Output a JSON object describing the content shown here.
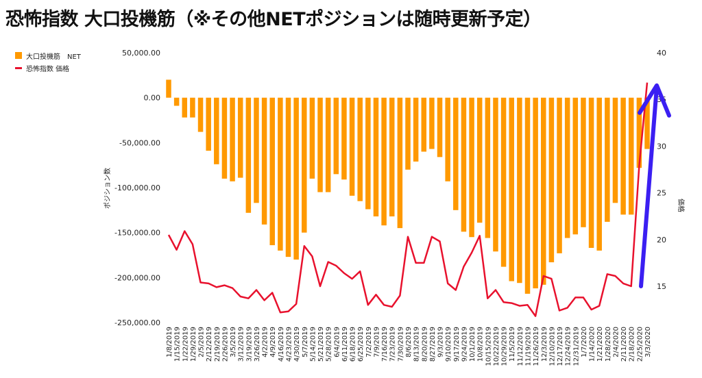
{
  "title": "恐怖指数 大口投機筋（※その他NETポジションは随時更新予定）",
  "legend": {
    "bar_label": "大口投機筋　NET",
    "line_label": "恐怖指数 価格"
  },
  "colors": {
    "bar": "#ff9900",
    "line": "#e8112d",
    "arrow": "#3b1ff2"
  },
  "chart_data": {
    "type": "bar",
    "title": "恐怖指数 大口投機筋（※その他NETポジションは随時更新予定）",
    "xlabel": "",
    "ylabel": "ポジション数",
    "y2label": "価格",
    "ylim": [
      -250000,
      50000
    ],
    "y2lim": [
      10,
      40
    ],
    "yticks": [
      "50,000.00",
      "0.00",
      "-50,000.00",
      "-100,000.00",
      "-150,000.00",
      "-200,000.00",
      "-250,000.00"
    ],
    "yticks_values": [
      50000,
      0,
      -50000,
      -100000,
      -150000,
      -200000,
      -250000
    ],
    "y2ticks": [
      "40",
      "35",
      "30",
      "25",
      "20",
      "15"
    ],
    "y2ticks_values": [
      40,
      35,
      30,
      25,
      20,
      15
    ],
    "legend_position": "top-left",
    "categories": [
      "1/8/2019",
      "1/15/2019",
      "1/22/2019",
      "1/29/2019",
      "2/5/2019",
      "2/12/2019",
      "2/19/2019",
      "2/26/2019",
      "3/5/2019",
      "3/12/2019",
      "3/19/2019",
      "3/26/2019",
      "4/2/2019",
      "4/9/2019",
      "4/16/2019",
      "4/23/2019",
      "4/30/2019",
      "5/7/2019",
      "5/14/2019",
      "5/21/2019",
      "5/28/2019",
      "6/4/2019",
      "6/11/2019",
      "6/18/2019",
      "6/25/2019",
      "7/2/2019",
      "7/9/2019",
      "7/16/2019",
      "7/23/2019",
      "7/30/2019",
      "8/6/2019",
      "8/13/2019",
      "8/20/2019",
      "8/27/2019",
      "9/3/2019",
      "9/10/2019",
      "9/17/2019",
      "9/24/2019",
      "10/1/2019",
      "10/8/2019",
      "10/15/2019",
      "10/22/2019",
      "10/29/2019",
      "11/5/2019",
      "11/12/2019",
      "11/19/2019",
      "11/26/2019",
      "12/3/2019",
      "12/10/2019",
      "12/17/2019",
      "12/24/2019",
      "12/31/2019",
      "1/7/2020",
      "1/14/2020",
      "1/21/2020",
      "1/28/2020",
      "2/4/2020",
      "2/11/2020",
      "2/18/2020",
      "2/25/2020",
      "3/3/2020"
    ],
    "series": [
      {
        "name": "大口投機筋　NET",
        "type": "bar",
        "axis": "left",
        "values": [
          20000,
          -9000,
          -22000,
          -22000,
          -38000,
          -59000,
          -74000,
          -90000,
          -93000,
          -89000,
          -128000,
          -117000,
          -141000,
          -164000,
          -170000,
          -177000,
          -180000,
          -150000,
          -90000,
          -105000,
          -105000,
          -85000,
          -91000,
          -109000,
          -115000,
          -124000,
          -132000,
          -142000,
          -132000,
          -145000,
          -80000,
          -71000,
          -60000,
          -57000,
          -66000,
          -93000,
          -125000,
          -149000,
          -155000,
          -139000,
          -156000,
          -171000,
          -188000,
          -204000,
          -206000,
          -218000,
          -212000,
          -208000,
          -183000,
          -173000,
          -156000,
          -152000,
          -144000,
          -167000,
          -170000,
          -138000,
          -117000,
          -130000,
          -130000,
          -78000,
          -57000
        ]
      },
      {
        "name": "恐怖指数 価格",
        "type": "line",
        "axis": "right",
        "values": [
          20.5,
          18.9,
          20.9,
          19.5,
          15.4,
          15.3,
          14.9,
          15.1,
          14.8,
          13.9,
          13.7,
          14.6,
          13.5,
          14.3,
          12.2,
          12.3,
          13.1,
          19.3,
          18.2,
          15.0,
          17.6,
          17.2,
          16.4,
          15.8,
          16.6,
          13.0,
          14.1,
          13.0,
          12.8,
          14.0,
          20.3,
          17.5,
          17.5,
          20.3,
          19.8,
          15.3,
          14.6,
          17.1,
          18.6,
          20.4,
          13.7,
          14.6,
          13.3,
          13.2,
          12.9,
          13.0,
          11.8,
          16.1,
          15.8,
          12.4,
          12.7,
          13.8,
          13.8,
          12.5,
          12.9,
          16.3,
          16.1,
          15.3,
          15.0,
          27.9,
          36.8
        ]
      }
    ],
    "annotations": [
      {
        "type": "arrow",
        "description": "upward arrow",
        "from_value": 15,
        "to_value": 36.5
      }
    ]
  }
}
